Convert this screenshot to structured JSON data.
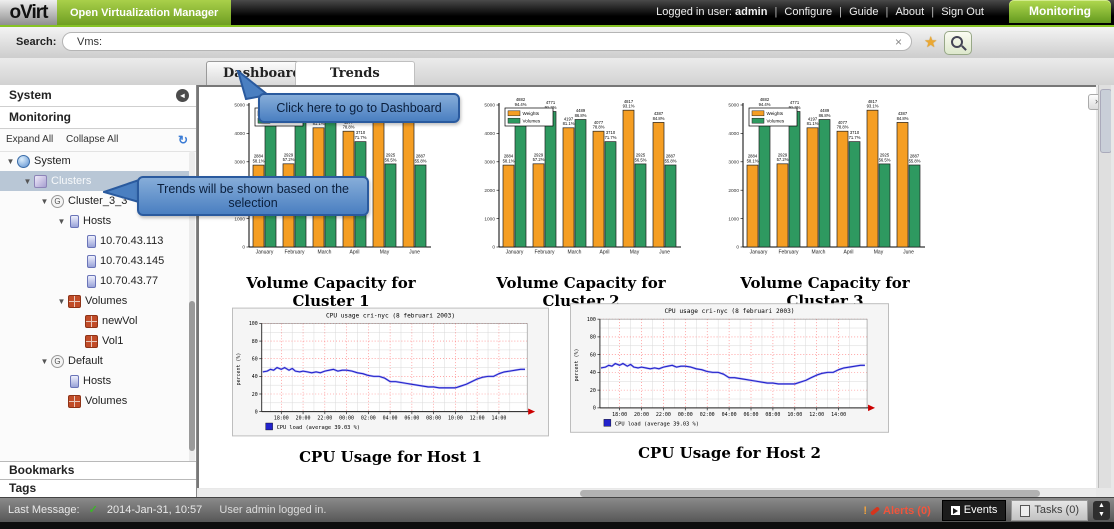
{
  "colors": {
    "accent_green": "#86C324",
    "tooltip_blue": "#4A7FC1",
    "selection_blue": "#B9C7D6",
    "alert_red": "#E4533F",
    "bar_orange": "#F59E23",
    "bar_green": "#2E9960",
    "line_blue": "#2323CC"
  },
  "header": {
    "logo": "oVirt",
    "product": "Open Virtualization Manager",
    "user_prefix": "Logged in user:",
    "user": "admin",
    "link_separator": "|",
    "links": [
      "Configure",
      "Guide",
      "About",
      "Sign Out"
    ],
    "mode_tab": "Monitoring"
  },
  "search": {
    "label": "Search:",
    "value": "Vms:",
    "clear": "×",
    "star_icon": "★"
  },
  "tabs": [
    {
      "label": "Dashboard",
      "active": false
    },
    {
      "label": "Trends",
      "active": true
    }
  ],
  "sidebar": {
    "sections": [
      "System",
      "Monitoring"
    ],
    "toolbar": {
      "expand": "Expand All",
      "collapse": "Collapse All",
      "refresh_icon": "↻"
    },
    "bottom_sections": [
      "Bookmarks",
      "Tags"
    ],
    "tree": [
      {
        "label": "System",
        "depth": 0,
        "icon": "globe-icon",
        "expander": true,
        "selected": false
      },
      {
        "label": "Clusters",
        "depth": 1,
        "icon": "clusters-icon",
        "expander": true,
        "selected": true
      },
      {
        "label": "Cluster_3_3",
        "depth": 2,
        "icon": "cluster-badge-icon",
        "badge": "G",
        "expander": true,
        "selected": false
      },
      {
        "label": "Hosts",
        "depth": 3,
        "icon": "host-icon",
        "expander": true,
        "selected": false
      },
      {
        "label": "10.70.43.113",
        "depth": 4,
        "icon": "host-icon",
        "expander": false,
        "selected": false
      },
      {
        "label": "10.70.43.145",
        "depth": 4,
        "icon": "host-icon",
        "expander": false,
        "selected": false
      },
      {
        "label": "10.70.43.77",
        "depth": 4,
        "icon": "host-icon",
        "expander": false,
        "selected": false
      },
      {
        "label": "Volumes",
        "depth": 3,
        "icon": "volume-icon",
        "expander": true,
        "selected": false
      },
      {
        "label": "newVol",
        "depth": 4,
        "icon": "volume-icon",
        "expander": false,
        "selected": false
      },
      {
        "label": "Vol1",
        "depth": 4,
        "icon": "volume-icon",
        "expander": false,
        "selected": false
      },
      {
        "label": "Default",
        "depth": 2,
        "icon": "cluster-badge-icon",
        "badge": "G",
        "expander": true,
        "selected": false
      },
      {
        "label": "Hosts",
        "depth": 3,
        "icon": "host-icon",
        "expander": false,
        "selected": false
      },
      {
        "label": "Volumes",
        "depth": 3,
        "icon": "volume-icon",
        "expander": false,
        "selected": false
      }
    ]
  },
  "tooltips": {
    "dashboard": "Click here to go to Dashboard",
    "trends": "Trends will be shown based on the selection"
  },
  "chart_data": [
    {
      "type": "bar",
      "caption": "Volume Capacity for Cluster 1",
      "categories": [
        "January",
        "February",
        "March",
        "April",
        "May",
        "June"
      ],
      "ylim": [
        0,
        5000
      ],
      "yticks": [
        0,
        1000,
        2000,
        3000,
        4000,
        5000
      ],
      "legend_position": "top-left",
      "series": [
        {
          "name": "Weights",
          "color": "#F59E23",
          "values": [
            2884,
            2929,
            4197,
            4077,
            4817,
            4387
          ],
          "bar_labels": [
            [
              "2884",
              "58.1%"
            ],
            [
              "2929",
              "57.2%"
            ],
            [
              "4197",
              "81.1%"
            ],
            [
              "4077",
              "78.8%"
            ],
            [
              "4817",
              "93.1%"
            ],
            [
              "4387",
              "84.8%"
            ]
          ]
        },
        {
          "name": "Volumes",
          "color": "#2E9960",
          "values": [
            4882,
            4771,
            4489,
            3710,
            2925,
            2887
          ],
          "bar_labels": [
            [
              "4882",
              "94.4%"
            ],
            [
              "4771",
              "91.2%"
            ],
            [
              "4489",
              "86.8%"
            ],
            [
              "3710",
              "71.7%"
            ],
            [
              "2925",
              "56.5%"
            ],
            [
              "2887",
              "55.8%"
            ]
          ]
        }
      ]
    },
    {
      "type": "bar",
      "caption": "Volume Capacity for Cluster 2",
      "categories": [
        "January",
        "February",
        "March",
        "April",
        "May",
        "June"
      ],
      "ylim": [
        0,
        5000
      ],
      "yticks": [
        0,
        1000,
        2000,
        3000,
        4000,
        5000
      ],
      "legend_position": "top-left",
      "series": [
        {
          "name": "Weights",
          "color": "#F59E23",
          "values": [
            2884,
            2929,
            4197,
            4077,
            4817,
            4387
          ],
          "bar_labels": [
            [
              "2884",
              "58.1%"
            ],
            [
              "2929",
              "57.2%"
            ],
            [
              "4197",
              "81.1%"
            ],
            [
              "4077",
              "78.8%"
            ],
            [
              "4817",
              "93.1%"
            ],
            [
              "4387",
              "84.8%"
            ]
          ]
        },
        {
          "name": "Volumes",
          "color": "#2E9960",
          "values": [
            4882,
            4771,
            4489,
            3710,
            2925,
            2887
          ],
          "bar_labels": [
            [
              "4882",
              "94.4%"
            ],
            [
              "4771",
              "91.2%"
            ],
            [
              "4489",
              "86.8%"
            ],
            [
              "3710",
              "71.7%"
            ],
            [
              "2925",
              "56.5%"
            ],
            [
              "2887",
              "55.8%"
            ]
          ]
        }
      ]
    },
    {
      "type": "bar",
      "caption": "Volume Capacity for Cluster 3",
      "categories": [
        "January",
        "February",
        "March",
        "April",
        "May",
        "June"
      ],
      "ylim": [
        0,
        5000
      ],
      "yticks": [
        0,
        1000,
        2000,
        3000,
        4000,
        5000
      ],
      "legend_position": "top-left",
      "series": [
        {
          "name": "Weights",
          "color": "#F59E23",
          "values": [
            2884,
            2929,
            4197,
            4077,
            4817,
            4387
          ],
          "bar_labels": [
            [
              "2884",
              "58.1%"
            ],
            [
              "2929",
              "57.2%"
            ],
            [
              "4197",
              "81.1%"
            ],
            [
              "4077",
              "78.8%"
            ],
            [
              "4817",
              "93.1%"
            ],
            [
              "4387",
              "84.8%"
            ]
          ]
        },
        {
          "name": "Volumes",
          "color": "#2E9960",
          "values": [
            4882,
            4771,
            4489,
            3710,
            2925,
            2887
          ],
          "bar_labels": [
            [
              "4882",
              "94.4%"
            ],
            [
              "4771",
              "91.2%"
            ],
            [
              "4489",
              "86.8%"
            ],
            [
              "3710",
              "71.7%"
            ],
            [
              "2925",
              "56.5%"
            ],
            [
              "2887",
              "55.8%"
            ]
          ]
        }
      ]
    },
    {
      "type": "line",
      "caption": "CPU Usage for Host 1",
      "title": "CPU usage cri-nyc (8 februari 2003)",
      "ylabel": "percent (%)",
      "legend": "CPU load  (average 39.03 %)",
      "line_color": "#2323CC",
      "ylim": [
        0,
        100
      ],
      "yticks": [
        0,
        20,
        40,
        60,
        80,
        100
      ],
      "xticks": [
        {
          "t": 18,
          "label": "18:00"
        },
        {
          "t": 20,
          "label": "20:00"
        },
        {
          "t": 22,
          "label": "22:00"
        },
        {
          "t": 24,
          "label": "00:00"
        },
        {
          "t": 26,
          "label": "02:00"
        },
        {
          "t": 28,
          "label": "04:00"
        },
        {
          "t": 30,
          "label": "06:00"
        },
        {
          "t": 32,
          "label": "08:00"
        },
        {
          "t": 34,
          "label": "10:00"
        },
        {
          "t": 36,
          "label": "12:00"
        },
        {
          "t": 38,
          "label": "14:00"
        }
      ],
      "points": [
        [
          16.3,
          45
        ],
        [
          16.7,
          46
        ],
        [
          17.0,
          48
        ],
        [
          17.3,
          47
        ],
        [
          17.6,
          50
        ],
        [
          18.0,
          48
        ],
        [
          18.3,
          50
        ],
        [
          18.7,
          47
        ],
        [
          19.0,
          49
        ],
        [
          19.3,
          46
        ],
        [
          19.7,
          45
        ],
        [
          20.0,
          46
        ],
        [
          20.4,
          45
        ],
        [
          20.8,
          44
        ],
        [
          21.2,
          45
        ],
        [
          21.6,
          44
        ],
        [
          22.0,
          46
        ],
        [
          22.4,
          47
        ],
        [
          22.8,
          48
        ],
        [
          23.2,
          46
        ],
        [
          23.6,
          47
        ],
        [
          24.0,
          47
        ],
        [
          24.5,
          46
        ],
        [
          25.0,
          44
        ],
        [
          25.5,
          43
        ],
        [
          26.0,
          41
        ],
        [
          26.5,
          40
        ],
        [
          27.0,
          40
        ],
        [
          27.5,
          38
        ],
        [
          28.0,
          34
        ],
        [
          28.5,
          34
        ],
        [
          29.0,
          33
        ],
        [
          29.5,
          32
        ],
        [
          30.0,
          31
        ],
        [
          30.5,
          30
        ],
        [
          31.0,
          29
        ],
        [
          31.5,
          28
        ],
        [
          32.0,
          28
        ],
        [
          32.5,
          27
        ],
        [
          33.0,
          27
        ],
        [
          33.5,
          27
        ],
        [
          34.0,
          27
        ],
        [
          34.5,
          29
        ],
        [
          35.0,
          31
        ],
        [
          35.5,
          34
        ],
        [
          36.0,
          37
        ],
        [
          36.5,
          39
        ],
        [
          37.0,
          40
        ],
        [
          37.5,
          40
        ],
        [
          38.0,
          43
        ],
        [
          38.5,
          45
        ],
        [
          39.0,
          46
        ],
        [
          39.5,
          47
        ],
        [
          40.0,
          48
        ],
        [
          40.4,
          48
        ]
      ]
    },
    {
      "type": "line",
      "caption": "CPU Usage for Host 2",
      "title": "CPU usage cri-nyc (8 februari 2003)",
      "ylabel": "percent (%)",
      "legend": "CPU load  (average 39.03 %)",
      "line_color": "#2323CC",
      "ylim": [
        0,
        100
      ],
      "yticks": [
        0,
        20,
        40,
        60,
        80,
        100
      ],
      "xticks": [
        {
          "t": 18,
          "label": "18:00"
        },
        {
          "t": 20,
          "label": "20:00"
        },
        {
          "t": 22,
          "label": "22:00"
        },
        {
          "t": 24,
          "label": "00:00"
        },
        {
          "t": 26,
          "label": "02:00"
        },
        {
          "t": 28,
          "label": "04:00"
        },
        {
          "t": 30,
          "label": "06:00"
        },
        {
          "t": 32,
          "label": "08:00"
        },
        {
          "t": 34,
          "label": "10:00"
        },
        {
          "t": 36,
          "label": "12:00"
        },
        {
          "t": 38,
          "label": "14:00"
        }
      ],
      "points": [
        [
          16.3,
          45
        ],
        [
          16.7,
          46
        ],
        [
          17.0,
          48
        ],
        [
          17.3,
          47
        ],
        [
          17.6,
          50
        ],
        [
          18.0,
          48
        ],
        [
          18.3,
          50
        ],
        [
          18.7,
          47
        ],
        [
          19.0,
          49
        ],
        [
          19.3,
          46
        ],
        [
          19.7,
          45
        ],
        [
          20.0,
          46
        ],
        [
          20.4,
          45
        ],
        [
          20.8,
          44
        ],
        [
          21.2,
          45
        ],
        [
          21.6,
          44
        ],
        [
          22.0,
          46
        ],
        [
          22.4,
          47
        ],
        [
          22.8,
          48
        ],
        [
          23.2,
          46
        ],
        [
          23.6,
          47
        ],
        [
          24.0,
          47
        ],
        [
          24.5,
          46
        ],
        [
          25.0,
          44
        ],
        [
          25.5,
          43
        ],
        [
          26.0,
          41
        ],
        [
          26.5,
          40
        ],
        [
          27.0,
          40
        ],
        [
          27.5,
          38
        ],
        [
          28.0,
          34
        ],
        [
          28.5,
          34
        ],
        [
          29.0,
          33
        ],
        [
          29.5,
          32
        ],
        [
          30.0,
          31
        ],
        [
          30.5,
          30
        ],
        [
          31.0,
          29
        ],
        [
          31.5,
          28
        ],
        [
          32.0,
          28
        ],
        [
          32.5,
          27
        ],
        [
          33.0,
          27
        ],
        [
          33.5,
          27
        ],
        [
          34.0,
          27
        ],
        [
          34.5,
          29
        ],
        [
          35.0,
          31
        ],
        [
          35.5,
          34
        ],
        [
          36.0,
          37
        ],
        [
          36.5,
          39
        ],
        [
          37.0,
          40
        ],
        [
          37.5,
          40
        ],
        [
          38.0,
          43
        ],
        [
          38.5,
          45
        ],
        [
          39.0,
          46
        ],
        [
          39.5,
          47
        ],
        [
          40.0,
          48
        ],
        [
          40.4,
          48
        ]
      ]
    }
  ],
  "status_bar": {
    "last_message_label": "Last Message:",
    "check_icon": "✓",
    "timestamp": "2014-Jan-31, 10:57",
    "message": "User admin logged in.",
    "alerts": "Alerts (0)",
    "events": "Events",
    "tasks": "Tasks (0)"
  }
}
